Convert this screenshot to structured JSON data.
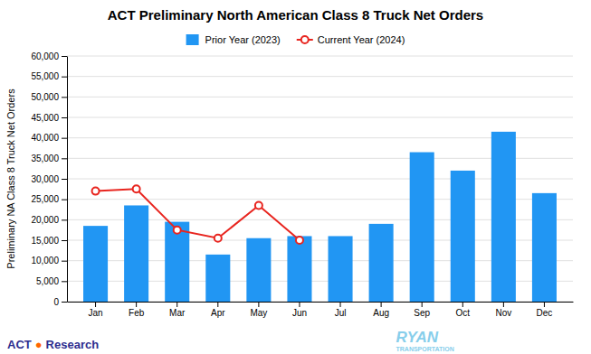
{
  "chart_data": {
    "type": "bar",
    "title": "ACT Preliminary North American Class 8 Truck Net Orders",
    "ylabel": "Preliminary NA Class 8 Truck Net Orders",
    "categories": [
      "Jan",
      "Feb",
      "Mar",
      "Apr",
      "May",
      "Jun",
      "Jul",
      "Aug",
      "Sep",
      "Oct",
      "Nov",
      "Dec"
    ],
    "series": [
      {
        "name": "Prior Year (2023)",
        "type": "bar",
        "color": "#2196F3",
        "values": [
          18500,
          23500,
          19500,
          11500,
          15500,
          16000,
          16000,
          19000,
          36500,
          32000,
          41500,
          26500
        ]
      },
      {
        "name": "Current Year (2024)",
        "type": "line",
        "color": "#E8251F",
        "marker": "circle",
        "line_style": "solid",
        "values": [
          27000,
          27500,
          17500,
          15500,
          23500,
          15000,
          null,
          null,
          null,
          null,
          null,
          null
        ]
      }
    ],
    "ylim": [
      0,
      60000
    ],
    "yticks": [
      0,
      {
        "value": 5000,
        "label": "5,000"
      },
      {
        "value": 10000,
        "label": "10,000"
      },
      {
        "value": 15000,
        "label": "15,000"
      },
      {
        "value": 20000,
        "label": "20,000"
      },
      {
        "value": 25000,
        "label": "25,000"
      },
      {
        "value": 30000,
        "label": "30,000"
      },
      {
        "value": 35000,
        "label": "35,000"
      },
      {
        "value": 40000,
        "label": "40,000"
      },
      {
        "value": 45000,
        "label": "45,000"
      },
      {
        "value": 50000,
        "label": "50,000"
      },
      {
        "value": 55000,
        "label": "55,000"
      },
      {
        "value": 60000,
        "label": "60,000"
      }
    ],
    "grid": true,
    "legend": "top",
    "annotations": [
      {
        "text": "ACT",
        "color": "#2D2D8E"
      },
      {
        "text": "●",
        "color": "#FF6600"
      },
      {
        "text": "Research",
        "color": "#2D2D8E"
      },
      {
        "text": "RYAN",
        "color": "#87CEEB"
      },
      {
        "text": "TRANSPORTATION",
        "color": "#87CEEB"
      }
    ]
  }
}
